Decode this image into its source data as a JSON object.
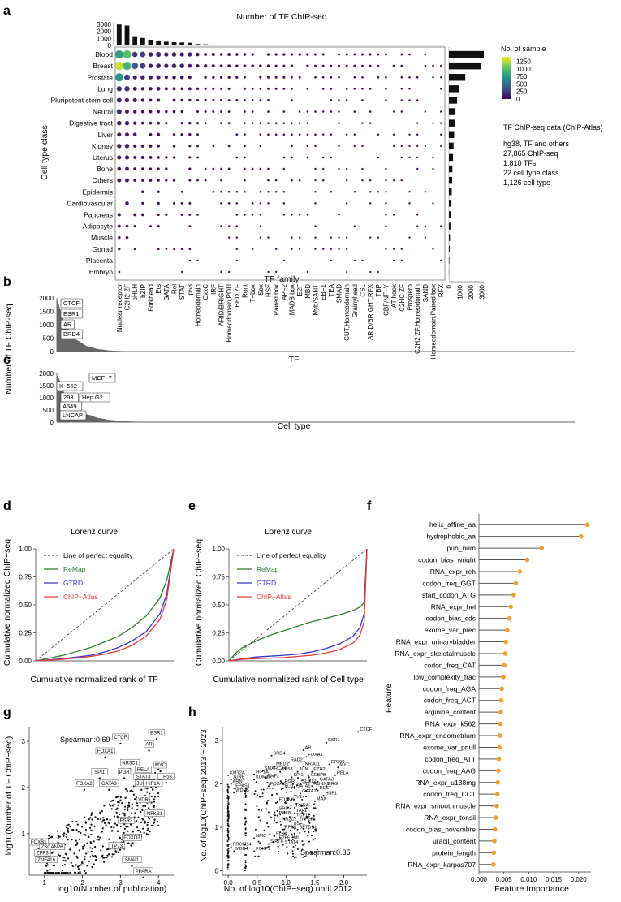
{
  "panels": {
    "a": "a",
    "b": "b",
    "c": "c",
    "d": "d",
    "e": "e",
    "f": "f",
    "g": "g",
    "h": "h"
  },
  "chart_data": [
    {
      "id": "a",
      "type": "dot-matrix",
      "title": "Number of TF ChIP-seq",
      "xlabel": "TF family",
      "ylabel": "Cell type class",
      "families": [
        "Nuclear receptor",
        "C2H2 ZF",
        "bHLH",
        "bZIP",
        "Forkhead",
        "Ets",
        "GATA",
        "Rel",
        "STAT",
        "p53",
        "Homeodomain",
        "CxxC",
        "IRF",
        "ARID/BRIGHT",
        "Homeodomain,POU",
        "BED ZF",
        "Runt",
        "T−box",
        "Sox",
        "HSF",
        "Paired box",
        "AP−2",
        "MADS box",
        "E2F",
        "MBD",
        "Myb/SANT",
        "EBF1",
        "TEA",
        "SMAD",
        "CUT,Homeodomain",
        "Grainyhead",
        "CSL",
        "ARID/BRIGHT,RFX",
        "TBP",
        "CBF/NF−Y",
        "AT hook",
        "C2HC ZF",
        "Prospero",
        "C2H2 ZF,Homeodomain",
        "SAND",
        "Homeodomain,Paired box",
        "RFX"
      ],
      "family_totals": [
        2950,
        2800,
        1300,
        1050,
        800,
        700,
        520,
        450,
        420,
        380,
        200,
        160,
        120,
        100,
        95,
        90,
        85,
        80,
        75,
        70,
        65,
        60,
        55,
        50,
        45,
        40,
        38,
        36,
        34,
        32,
        30,
        28,
        26,
        24,
        22,
        20,
        18,
        16,
        14,
        12,
        10,
        8
      ],
      "top_axis": {
        "ticks": [
          "3000",
          "2000",
          "1000",
          "0"
        ],
        "max": 3200
      },
      "cell_types": [
        "Blood",
        "Breast",
        "Prostate",
        "Lung",
        "Pluripotent stem cell",
        "Neural",
        "Digestive tract",
        "Liver",
        "Kidney",
        "Uterus",
        "Bone",
        "Others",
        "Epidermis",
        "Cardiovascular",
        "Pancreas",
        "Adipocyte",
        "Muscle",
        "Gonad",
        "Placenta",
        "Embryo"
      ],
      "cell_totals": [
        3200,
        2900,
        1500,
        900,
        750,
        600,
        520,
        480,
        430,
        380,
        320,
        300,
        260,
        230,
        200,
        140,
        100,
        70,
        40,
        15
      ],
      "right_axis": {
        "ticks": [
          "0",
          "1000",
          "2000",
          "3000"
        ],
        "max": 3200
      },
      "legend": {
        "title": "No. of sample",
        "ticks": [
          "1250",
          "1000",
          "750",
          "500",
          "250",
          "0"
        ],
        "max": 1400
      },
      "info": {
        "title": "TF ChIP-seq data (ChIP-Atlas)",
        "lines": [
          "hg38, TF and others",
          "27,865 ChIP-seq",
          "1,810 TFs",
          "22 cell type class",
          "1,126 cell type"
        ]
      }
    },
    {
      "id": "b",
      "type": "area",
      "xlabel": "TF",
      "yticks": [
        "2000",
        "1500",
        "1000",
        "500",
        "0"
      ],
      "ymax": 2000,
      "labels": [
        "CTCF",
        "ESR1",
        "AR",
        "BRD4"
      ]
    },
    {
      "id": "c",
      "type": "area",
      "xlabel": "Cell type",
      "ylabel": "Number of TF ChIP-seq",
      "yticks": [
        "2000",
        "1500",
        "1000",
        "500",
        "0"
      ],
      "ymax": 2000,
      "labels": [
        "MCF−7",
        "K−562",
        "293",
        "Hep G2",
        "A549",
        "LNCAP"
      ]
    },
    {
      "id": "d",
      "type": "line",
      "title": "Lorenz curve",
      "xlabel": "Cumulative normalized rank of TF",
      "ylabel": "Cumulative normalized ChIP−seq",
      "yticks": [
        "0.00",
        "0.25",
        "0.50",
        "0.75",
        "1.00"
      ],
      "legend": [
        "Line of perfect equality",
        "ReMap",
        "GTRD",
        "ChIP−Atlas"
      ],
      "series": [
        {
          "name": "ReMap",
          "color": "#2e7d32",
          "x": [
            0,
            0.2,
            0.4,
            0.5,
            0.6,
            0.7,
            0.8,
            0.9,
            0.95,
            1
          ],
          "y": [
            0,
            0.05,
            0.12,
            0.17,
            0.22,
            0.3,
            0.4,
            0.56,
            0.72,
            1
          ]
        },
        {
          "name": "GTRD",
          "color": "#3333cc",
          "x": [
            0,
            0.2,
            0.4,
            0.5,
            0.6,
            0.7,
            0.8,
            0.9,
            0.95,
            1
          ],
          "y": [
            0,
            0.02,
            0.05,
            0.08,
            0.12,
            0.18,
            0.26,
            0.42,
            0.6,
            1
          ]
        },
        {
          "name": "ChIP−Atlas",
          "color": "#e53935",
          "x": [
            0,
            0.2,
            0.4,
            0.5,
            0.6,
            0.7,
            0.8,
            0.9,
            0.95,
            1
          ],
          "y": [
            0,
            0.015,
            0.04,
            0.06,
            0.09,
            0.14,
            0.22,
            0.37,
            0.55,
            1
          ]
        }
      ]
    },
    {
      "id": "e",
      "type": "line",
      "title": "Lorenz curve",
      "xlabel": "Cumulative normalized rank of Cell type",
      "ylabel": "Cumulative normalized ChIP−seq",
      "yticks": [
        "0.00",
        "0.25",
        "0.50",
        "0.75",
        "1.00"
      ],
      "legend": [
        "Line of perfect equality",
        "ReMap",
        "GTRD",
        "ChIP−Atlas"
      ],
      "series": [
        {
          "name": "ReMap",
          "color": "#2e7d32",
          "x": [
            0,
            0.05,
            0.1,
            0.2,
            0.3,
            0.4,
            0.5,
            0.6,
            0.7,
            0.8,
            0.9,
            0.95,
            0.98,
            1
          ],
          "y": [
            0,
            0.07,
            0.12,
            0.18,
            0.23,
            0.27,
            0.31,
            0.35,
            0.38,
            0.41,
            0.45,
            0.48,
            0.52,
            1
          ]
        },
        {
          "name": "GTRD",
          "color": "#3333cc",
          "x": [
            0,
            0.1,
            0.2,
            0.4,
            0.5,
            0.6,
            0.7,
            0.8,
            0.9,
            0.95,
            0.98,
            1
          ],
          "y": [
            0,
            0.02,
            0.035,
            0.05,
            0.06,
            0.08,
            0.11,
            0.15,
            0.22,
            0.3,
            0.42,
            1
          ]
        },
        {
          "name": "ChIP−Atlas",
          "color": "#e53935",
          "x": [
            0,
            0.1,
            0.2,
            0.4,
            0.5,
            0.6,
            0.7,
            0.8,
            0.9,
            0.95,
            0.98,
            1
          ],
          "y": [
            0,
            0.015,
            0.02,
            0.03,
            0.04,
            0.05,
            0.07,
            0.1,
            0.16,
            0.23,
            0.35,
            1
          ]
        }
      ]
    },
    {
      "id": "f",
      "type": "lollipop",
      "xlabel": "Feature Importance",
      "ylabel": "Feature",
      "xticks": [
        "0.000",
        "0.005",
        "0.010",
        "0.015",
        "0.020"
      ],
      "xmax": 0.0225,
      "features": [
        "helix_affine_aa",
        "hydrophobic_aa",
        "pub_num",
        "codon_bias_wright",
        "RNA_expr_reh",
        "codon_freq_GGT",
        "start_codon_ATG",
        "RNA_expr_hel",
        "codon_bias_cds",
        "exome_var_prec",
        "RNA_expr_urinarybladder",
        "RNA_expr_skeletalmuscle",
        "codon_freq_CAT",
        "low_complexity_frac",
        "codon_freq_AGA",
        "codon_freq_ACT",
        "arginine_content",
        "RNA_expr_k562",
        "RNA_expr_endometrium",
        "exome_var_pnull",
        "codon_freq_ATT",
        "codon_freq_AAG",
        "RNA_expr_u138mg",
        "codon_freq_CCT",
        "RNA_expr_smoothmuscle",
        "RNA_expr_tonsil",
        "codon_bias_novembre",
        "uracil_content",
        "protein_length",
        "RNA_expr_karpas707"
      ],
      "values": [
        0.0218,
        0.0205,
        0.0126,
        0.0097,
        0.0082,
        0.0074,
        0.007,
        0.0064,
        0.0061,
        0.0057,
        0.0054,
        0.0053,
        0.0051,
        0.0049,
        0.0046,
        0.0045,
        0.0044,
        0.0043,
        0.0042,
        0.0041,
        0.004,
        0.0039,
        0.0038,
        0.0037,
        0.0036,
        0.0034,
        0.0032,
        0.0031,
        0.003,
        0.0029
      ]
    },
    {
      "id": "g",
      "type": "scatter",
      "xlabel": "log10(Number of publication)",
      "ylabel": "log10(Number of TF ChIP−seq)",
      "xticks": [
        "1",
        "2",
        "3",
        "4"
      ],
      "yticks": [
        "1",
        "2",
        "3"
      ],
      "xlim": [
        0.6,
        4.4
      ],
      "ylim": [
        0.1,
        3.3
      ],
      "annotation": "Spearman:0.69",
      "labels": [
        {
          "t": "ESR1",
          "x": 3.95,
          "y": 3.05
        },
        {
          "t": "CTCF",
          "x": 3.0,
          "y": 2.95
        },
        {
          "t": "AR",
          "x": 3.75,
          "y": 2.8
        },
        {
          "t": "FOXA1",
          "x": 2.6,
          "y": 2.65
        },
        {
          "t": "MYC",
          "x": 4.05,
          "y": 2.35
        },
        {
          "t": "NR3C1",
          "x": 3.25,
          "y": 2.4
        },
        {
          "t": "SPI1",
          "x": 2.45,
          "y": 2.2
        },
        {
          "t": "PGR",
          "x": 3.1,
          "y": 2.2
        },
        {
          "t": "RELA",
          "x": 3.6,
          "y": 2.25
        },
        {
          "t": "TP53",
          "x": 4.2,
          "y": 2.1
        },
        {
          "t": "STAT3",
          "x": 3.6,
          "y": 2.1
        },
        {
          "t": "FOXA2",
          "x": 2.05,
          "y": 1.95
        },
        {
          "t": "GATA3",
          "x": 2.7,
          "y": 1.95
        },
        {
          "t": "JUN",
          "x": 3.55,
          "y": 1.95
        },
        {
          "t": "HIF1A",
          "x": 3.85,
          "y": 1.95
        },
        {
          "t": "VDR",
          "x": 3.6,
          "y": 1.6
        },
        {
          "t": "NFKB1",
          "x": 3.9,
          "y": 1.3
        },
        {
          "t": "ESR2",
          "x": 3.15,
          "y": 1.15
        },
        {
          "t": "FOXO3",
          "x": 3.3,
          "y": 0.78
        },
        {
          "t": "FOXB1",
          "x": 0.85,
          "y": 0.68
        },
        {
          "t": "ZSCAN26",
          "x": 1.2,
          "y": 0.58
        },
        {
          "t": "TP73",
          "x": 2.9,
          "y": 0.6
        },
        {
          "t": "ZFP3",
          "x": 0.95,
          "y": 0.45
        },
        {
          "t": "ZNF416",
          "x": 1.05,
          "y": 0.3
        },
        {
          "t": "SNAI1",
          "x": 3.3,
          "y": 0.3
        },
        {
          "t": "PPARA",
          "x": 3.6,
          "y": 0.05
        }
      ]
    },
    {
      "id": "h",
      "type": "scatter",
      "xlabel": "No. of log10(ChIP−seq) until 2012",
      "ylabel": "No. of log10(ChIP−seq) 2013 − 2023",
      "xticks": [
        "0.0",
        "0.5",
        "1.0",
        "1.5",
        "2.0"
      ],
      "yticks": [
        "0",
        "1",
        "2",
        "3"
      ],
      "xlim": [
        -0.1,
        2.4
      ],
      "ylim": [
        -0.1,
        3.3
      ],
      "annotation": "Spearman:0.35",
      "labels": [
        {
          "t": "CTCF",
          "x": 2.25,
          "y": 3.2
        },
        {
          "t": "ESR1",
          "x": 1.7,
          "y": 2.95
        },
        {
          "t": "BRD4",
          "x": 0.75,
          "y": 2.65
        },
        {
          "t": "AR",
          "x": 1.3,
          "y": 2.78
        },
        {
          "t": "FOXA1",
          "x": 1.35,
          "y": 2.62
        },
        {
          "t": "RAD21",
          "x": 1.05,
          "y": 2.5
        },
        {
          "t": "EP300",
          "x": 1.75,
          "y": 2.45
        },
        {
          "t": "MED1",
          "x": 0.8,
          "y": 2.4
        },
        {
          "t": "NR3C1",
          "x": 1.3,
          "y": 2.4
        },
        {
          "t": "MYC",
          "x": 1.9,
          "y": 2.38
        },
        {
          "t": "KMT2A",
          "x": 0.0,
          "y": 2.2
        },
        {
          "t": "HIF1A",
          "x": 0.45,
          "y": 2.22
        },
        {
          "t": "SMARCA4",
          "x": 0.6,
          "y": 2.3
        },
        {
          "t": "TP53",
          "x": 0.9,
          "y": 2.28
        },
        {
          "t": "JUN",
          "x": 1.2,
          "y": 2.28
        },
        {
          "t": "EZH2",
          "x": 1.45,
          "y": 2.28
        },
        {
          "t": "RELA",
          "x": 1.85,
          "y": 2.2
        },
        {
          "t": "JUNB",
          "x": 0.05,
          "y": 2.1
        },
        {
          "t": "KDM1A",
          "x": 0.45,
          "y": 2.1
        },
        {
          "t": "RNF2",
          "x": 0.65,
          "y": 2.12
        },
        {
          "t": "SPI1",
          "x": 1.1,
          "y": 2.15
        },
        {
          "t": "CEBPB",
          "x": 1.4,
          "y": 2.15
        },
        {
          "t": "ARNT",
          "x": 0.05,
          "y": 2.0
        },
        {
          "t": "GATA3",
          "x": 1.55,
          "y": 2.05
        },
        {
          "t": "SUZ12",
          "x": 1.25,
          "y": 2.0
        },
        {
          "t": "EPAS1",
          "x": 0.1,
          "y": 1.9
        },
        {
          "t": "FOXA2",
          "x": 0.7,
          "y": 1.95
        },
        {
          "t": "PGR",
          "x": 0.95,
          "y": 2.0
        },
        {
          "t": "RUNX1",
          "x": 1.45,
          "y": 1.95
        },
        {
          "t": "ERG",
          "x": 1.7,
          "y": 1.95
        },
        {
          "t": "WDR5",
          "x": 0.1,
          "y": 1.8
        },
        {
          "t": "FLI1",
          "x": 0.95,
          "y": 1.9
        },
        {
          "t": "GATA1",
          "x": 1.15,
          "y": 1.9
        },
        {
          "t": "REST",
          "x": 1.55,
          "y": 1.85
        },
        {
          "t": "GATA2",
          "x": 1.25,
          "y": 1.78
        },
        {
          "t": "HSF1",
          "x": 1.65,
          "y": 1.73
        },
        {
          "t": "YY1",
          "x": 1.1,
          "y": 1.65
        },
        {
          "t": "MAX",
          "x": 1.5,
          "y": 1.6
        },
        {
          "t": "FOXM1",
          "x": 0.85,
          "y": 1.58
        },
        {
          "t": "RXRA",
          "x": 1.15,
          "y": 1.45
        },
        {
          "t": "SRF",
          "x": 0.85,
          "y": 1.38
        },
        {
          "t": "TAF1",
          "x": 1.15,
          "y": 1.33
        },
        {
          "t": "PHF8",
          "x": 0.85,
          "y": 1.27
        },
        {
          "t": "TCF12",
          "x": 1.15,
          "y": 1.23
        },
        {
          "t": "NR2C2",
          "x": 0.9,
          "y": 1.13
        },
        {
          "t": "ZNF274",
          "x": 1.2,
          "y": 1.13
        },
        {
          "t": "USF1",
          "x": 1.1,
          "y": 1.03
        },
        {
          "t": "RFX5",
          "x": 0.95,
          "y": 0.95
        },
        {
          "t": "SETDB1",
          "x": 1.2,
          "y": 0.95
        },
        {
          "t": "ELK4",
          "x": 0.8,
          "y": 0.8
        },
        {
          "t": "NFIC",
          "x": 0.45,
          "y": 0.75
        },
        {
          "t": "E2F6",
          "x": 0.85,
          "y": 0.7
        },
        {
          "t": "PML",
          "x": 1.05,
          "y": 0.7
        },
        {
          "t": "SIRT6",
          "x": 0.7,
          "y": 0.62
        },
        {
          "t": "STAT4",
          "x": 0.95,
          "y": 0.6
        },
        {
          "t": "PROM14",
          "x": 0.05,
          "y": 0.55
        },
        {
          "t": "MBD4",
          "x": 0.1,
          "y": 0.45
        },
        {
          "t": "FOXP2",
          "x": 0.45,
          "y": 0.45
        }
      ]
    }
  ]
}
